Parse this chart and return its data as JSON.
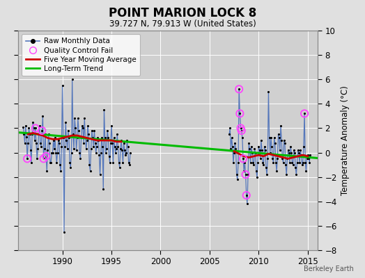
{
  "title": "POINT MARION LOCK 8",
  "subtitle": "39.727 N, 79.913 W (United States)",
  "ylabel": "Temperature Anomaly (°C)",
  "attribution": "Berkeley Earth",
  "xlim": [
    1985.5,
    2016.0
  ],
  "ylim": [
    -8,
    10
  ],
  "yticks": [
    -8,
    -6,
    -4,
    -2,
    0,
    2,
    4,
    6,
    8,
    10
  ],
  "xticks": [
    1990,
    1995,
    2000,
    2005,
    2010,
    2015
  ],
  "background_color": "#e0e0e0",
  "plot_bg_color": "#d0d0d0",
  "raw_line_color": "#5577bb",
  "raw_dot_color": "#000000",
  "ma_color": "#cc0000",
  "trend_color": "#00bb00",
  "qc_fail_color": "#ff44ff",
  "raw_monthly_seg1": [
    [
      1986.0,
      2.1
    ],
    [
      1986.083,
      1.5
    ],
    [
      1986.167,
      0.8
    ],
    [
      1986.25,
      2.2
    ],
    [
      1986.333,
      1.3
    ],
    [
      1986.417,
      -0.5
    ],
    [
      1986.5,
      0.8
    ],
    [
      1986.583,
      2.0
    ],
    [
      1986.667,
      1.5
    ],
    [
      1986.75,
      0.2
    ],
    [
      1986.833,
      -0.8
    ],
    [
      1986.917,
      1.5
    ],
    [
      1987.0,
      2.5
    ],
    [
      1987.083,
      2.0
    ],
    [
      1987.167,
      1.0
    ],
    [
      1987.25,
      2.0
    ],
    [
      1987.333,
      0.8
    ],
    [
      1987.417,
      -0.5
    ],
    [
      1987.5,
      0.3
    ],
    [
      1987.583,
      1.5
    ],
    [
      1987.667,
      2.2
    ],
    [
      1987.75,
      0.8
    ],
    [
      1987.833,
      0.5
    ],
    [
      1987.917,
      1.8
    ],
    [
      1988.0,
      3.0
    ],
    [
      1988.083,
      -0.5
    ],
    [
      1988.167,
      0.3
    ],
    [
      1988.25,
      1.5
    ],
    [
      1988.333,
      -0.3
    ],
    [
      1988.417,
      -1.5
    ],
    [
      1988.5,
      0.2
    ],
    [
      1988.583,
      1.5
    ],
    [
      1988.667,
      0.8
    ],
    [
      1988.75,
      -0.8
    ],
    [
      1988.833,
      -0.8
    ],
    [
      1988.917,
      0.0
    ],
    [
      1989.0,
      0.0
    ],
    [
      1989.083,
      1.0
    ],
    [
      1989.167,
      0.3
    ],
    [
      1989.25,
      1.2
    ],
    [
      1989.333,
      0.0
    ],
    [
      1989.417,
      -0.8
    ],
    [
      1989.5,
      0.0
    ],
    [
      1989.583,
      1.0
    ],
    [
      1989.667,
      0.8
    ],
    [
      1989.75,
      -1.0
    ],
    [
      1989.833,
      -1.5
    ],
    [
      1989.917,
      0.5
    ],
    [
      1990.0,
      5.5
    ],
    [
      1990.083,
      1.2
    ],
    [
      1990.167,
      -6.5
    ],
    [
      1990.25,
      0.5
    ],
    [
      1990.333,
      2.5
    ],
    [
      1990.417,
      1.0
    ],
    [
      1990.5,
      0.3
    ],
    [
      1990.583,
      1.8
    ],
    [
      1990.667,
      1.2
    ],
    [
      1990.75,
      -0.8
    ],
    [
      1990.833,
      -1.2
    ],
    [
      1990.917,
      0.0
    ],
    [
      1991.0,
      6.0
    ],
    [
      1991.083,
      1.5
    ],
    [
      1991.167,
      0.3
    ],
    [
      1991.25,
      2.8
    ],
    [
      1991.333,
      2.0
    ],
    [
      1991.417,
      0.2
    ],
    [
      1991.5,
      1.2
    ],
    [
      1991.583,
      2.8
    ],
    [
      1991.667,
      1.8
    ],
    [
      1991.75,
      0.0
    ],
    [
      1991.833,
      -0.5
    ],
    [
      1991.917,
      1.2
    ],
    [
      1992.0,
      2.2
    ],
    [
      1992.083,
      2.0
    ],
    [
      1992.167,
      0.8
    ],
    [
      1992.25,
      2.8
    ],
    [
      1992.333,
      1.2
    ],
    [
      1992.417,
      0.3
    ],
    [
      1992.5,
      1.0
    ],
    [
      1992.583,
      2.2
    ],
    [
      1992.667,
      1.5
    ],
    [
      1992.75,
      -1.0
    ],
    [
      1992.833,
      -1.5
    ],
    [
      1992.917,
      0.3
    ],
    [
      1993.0,
      1.8
    ],
    [
      1993.083,
      1.2
    ],
    [
      1993.167,
      0.5
    ],
    [
      1993.25,
      1.8
    ],
    [
      1993.333,
      0.8
    ],
    [
      1993.417,
      0.0
    ],
    [
      1993.5,
      0.5
    ],
    [
      1993.583,
      1.2
    ],
    [
      1993.667,
      1.0
    ],
    [
      1993.75,
      -0.2
    ],
    [
      1993.833,
      -1.8
    ],
    [
      1993.917,
      0.0
    ],
    [
      1994.0,
      1.2
    ],
    [
      1994.083,
      0.5
    ],
    [
      1994.167,
      -3.0
    ],
    [
      1994.25,
      3.5
    ],
    [
      1994.333,
      1.2
    ],
    [
      1994.417,
      0.0
    ],
    [
      1994.5,
      0.3
    ],
    [
      1994.583,
      1.8
    ],
    [
      1994.667,
      1.2
    ],
    [
      1994.75,
      -0.3
    ],
    [
      1994.833,
      -0.8
    ],
    [
      1994.917,
      0.8
    ],
    [
      1995.0,
      2.2
    ],
    [
      1995.083,
      0.8
    ],
    [
      1995.167,
      -0.8
    ],
    [
      1995.25,
      1.2
    ],
    [
      1995.333,
      0.5
    ],
    [
      1995.417,
      0.0
    ],
    [
      1995.5,
      0.3
    ],
    [
      1995.583,
      1.5
    ],
    [
      1995.667,
      0.5
    ],
    [
      1995.75,
      -0.8
    ],
    [
      1995.833,
      -1.2
    ],
    [
      1995.917,
      0.3
    ],
    [
      1996.0,
      1.0
    ],
    [
      1996.083,
      0.2
    ],
    [
      1996.167,
      -0.8
    ],
    [
      1996.25,
      0.8
    ],
    [
      1996.333,
      0.2
    ],
    [
      1996.417,
      -0.2
    ],
    [
      1996.5,
      0.0
    ],
    [
      1996.583,
      1.0
    ],
    [
      1996.667,
      0.5
    ],
    [
      1996.75,
      -0.8
    ],
    [
      1996.833,
      -1.0
    ],
    [
      1996.917,
      0.0
    ]
  ],
  "raw_monthly_seg2": [
    [
      2007.0,
      1.5
    ],
    [
      2007.083,
      2.0
    ],
    [
      2007.167,
      0.3
    ],
    [
      2007.25,
      1.2
    ],
    [
      2007.333,
      0.5
    ],
    [
      2007.417,
      -0.8
    ],
    [
      2007.5,
      0.0
    ],
    [
      2007.583,
      0.8
    ],
    [
      2007.667,
      0.3
    ],
    [
      2007.75,
      -1.8
    ],
    [
      2007.833,
      -2.2
    ],
    [
      2007.917,
      -0.8
    ],
    [
      2008.0,
      5.2
    ],
    [
      2008.083,
      3.2
    ],
    [
      2008.167,
      2.0
    ],
    [
      2008.25,
      1.8
    ],
    [
      2008.333,
      1.2
    ],
    [
      2008.417,
      -0.5
    ],
    [
      2008.5,
      -1.5
    ],
    [
      2008.583,
      -0.8
    ],
    [
      2008.667,
      -1.8
    ],
    [
      2008.75,
      -3.5
    ],
    [
      2008.833,
      -4.2
    ],
    [
      2008.917,
      -1.8
    ],
    [
      2009.0,
      0.8
    ],
    [
      2009.083,
      0.3
    ],
    [
      2009.167,
      -0.8
    ],
    [
      2009.25,
      0.5
    ],
    [
      2009.333,
      0.0
    ],
    [
      2009.417,
      -0.8
    ],
    [
      2009.5,
      -1.0
    ],
    [
      2009.583,
      0.3
    ],
    [
      2009.667,
      0.0
    ],
    [
      2009.75,
      -1.5
    ],
    [
      2009.833,
      -2.0
    ],
    [
      2009.917,
      -0.8
    ],
    [
      2010.0,
      0.5
    ],
    [
      2010.083,
      0.2
    ],
    [
      2010.167,
      -0.5
    ],
    [
      2010.25,
      1.0
    ],
    [
      2010.333,
      0.2
    ],
    [
      2010.417,
      -0.8
    ],
    [
      2010.5,
      -1.0
    ],
    [
      2010.583,
      0.5
    ],
    [
      2010.667,
      0.2
    ],
    [
      2010.75,
      -1.2
    ],
    [
      2010.833,
      -1.8
    ],
    [
      2010.917,
      -0.5
    ],
    [
      2011.0,
      5.0
    ],
    [
      2011.083,
      1.2
    ],
    [
      2011.167,
      0.0
    ],
    [
      2011.25,
      1.2
    ],
    [
      2011.333,
      0.5
    ],
    [
      2011.417,
      -0.5
    ],
    [
      2011.5,
      -0.8
    ],
    [
      2011.583,
      1.2
    ],
    [
      2011.667,
      0.8
    ],
    [
      2011.75,
      -0.8
    ],
    [
      2011.833,
      -1.5
    ],
    [
      2011.917,
      -0.5
    ],
    [
      2012.0,
      1.5
    ],
    [
      2012.083,
      1.2
    ],
    [
      2012.167,
      0.2
    ],
    [
      2012.25,
      2.2
    ],
    [
      2012.333,
      1.0
    ],
    [
      2012.417,
      -0.5
    ],
    [
      2012.5,
      -0.8
    ],
    [
      2012.583,
      1.0
    ],
    [
      2012.667,
      0.8
    ],
    [
      2012.75,
      -1.0
    ],
    [
      2012.833,
      -1.8
    ],
    [
      2012.917,
      -0.5
    ],
    [
      2013.0,
      0.2
    ],
    [
      2013.083,
      0.0
    ],
    [
      2013.167,
      -0.8
    ],
    [
      2013.25,
      0.5
    ],
    [
      2013.333,
      0.0
    ],
    [
      2013.417,
      -0.8
    ],
    [
      2013.5,
      -1.0
    ],
    [
      2013.583,
      0.2
    ],
    [
      2013.667,
      0.0
    ],
    [
      2013.75,
      -1.2
    ],
    [
      2013.833,
      -1.8
    ],
    [
      2013.917,
      -0.8
    ],
    [
      2014.0,
      0.2
    ],
    [
      2014.083,
      0.0
    ],
    [
      2014.167,
      -0.8
    ],
    [
      2014.25,
      0.2
    ],
    [
      2014.333,
      -0.2
    ],
    [
      2014.417,
      -1.0
    ],
    [
      2014.5,
      -0.8
    ],
    [
      2014.583,
      0.5
    ],
    [
      2014.667,
      3.2
    ],
    [
      2014.75,
      -0.8
    ],
    [
      2014.833,
      -1.5
    ],
    [
      2014.917,
      -0.5
    ],
    [
      2015.0,
      -0.2
    ],
    [
      2015.083,
      -0.5
    ],
    [
      2015.167,
      -0.8
    ],
    [
      2015.25,
      -0.2
    ]
  ],
  "qc_fail_points": [
    [
      1986.417,
      -0.5
    ],
    [
      1987.25,
      2.0
    ],
    [
      1987.917,
      1.8
    ],
    [
      1988.083,
      -0.5
    ],
    [
      1988.333,
      -0.3
    ],
    [
      2008.0,
      5.2
    ],
    [
      2008.083,
      3.2
    ],
    [
      2008.167,
      2.0
    ],
    [
      2008.25,
      1.8
    ],
    [
      2008.417,
      -0.5
    ],
    [
      2008.667,
      -1.8
    ],
    [
      2008.75,
      -3.5
    ],
    [
      2014.667,
      3.2
    ]
  ],
  "moving_avg_seg1": [
    [
      1986.5,
      1.5
    ],
    [
      1987.0,
      1.6
    ],
    [
      1987.5,
      1.5
    ],
    [
      1988.0,
      1.4
    ],
    [
      1988.5,
      1.2
    ],
    [
      1989.0,
      1.1
    ],
    [
      1989.5,
      1.1
    ],
    [
      1990.0,
      1.2
    ],
    [
      1990.5,
      1.3
    ],
    [
      1991.0,
      1.4
    ],
    [
      1991.5,
      1.4
    ],
    [
      1992.0,
      1.3
    ],
    [
      1992.5,
      1.2
    ],
    [
      1993.0,
      1.1
    ],
    [
      1993.5,
      1.0
    ],
    [
      1994.0,
      1.0
    ],
    [
      1994.5,
      1.0
    ],
    [
      1995.0,
      1.0
    ],
    [
      1995.5,
      0.9
    ],
    [
      1996.0,
      0.9
    ]
  ],
  "moving_avg_seg2": [
    [
      2007.5,
      0.1
    ],
    [
      2008.0,
      -0.1
    ],
    [
      2008.5,
      -0.3
    ],
    [
      2009.0,
      -0.4
    ],
    [
      2009.5,
      -0.3
    ],
    [
      2010.0,
      -0.2
    ],
    [
      2010.5,
      -0.3
    ],
    [
      2011.0,
      -0.1
    ],
    [
      2011.5,
      -0.2
    ],
    [
      2012.0,
      -0.3
    ],
    [
      2012.5,
      -0.4
    ],
    [
      2013.0,
      -0.5
    ],
    [
      2013.5,
      -0.4
    ],
    [
      2014.0,
      -0.3
    ],
    [
      2014.5,
      -0.2
    ],
    [
      2015.0,
      -0.3
    ]
  ],
  "trend_x": [
    1985.5,
    2016.0
  ],
  "trend_y": [
    1.65,
    -0.45
  ]
}
